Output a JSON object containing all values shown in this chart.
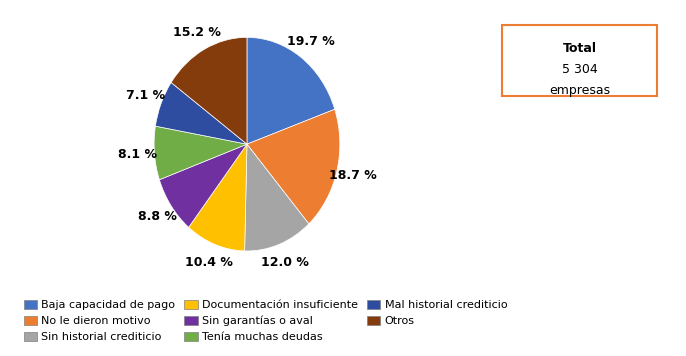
{
  "slices": [
    {
      "label": "Baja capacidad de pago",
      "pct": 19.7,
      "color": "#4472C4"
    },
    {
      "label": "No le dieron motivo",
      "pct": 18.7,
      "color": "#ED7D31"
    },
    {
      "label": "Sin historial crediticio",
      "pct": 12.0,
      "color": "#A5A5A5"
    },
    {
      "label": "Documentación insuficiente",
      "pct": 10.4,
      "color": "#FFC000"
    },
    {
      "label": "Sin garantías o aval",
      "pct": 8.8,
      "color": "#7030A0"
    },
    {
      "label": "Tenía muchas deudas",
      "pct": 8.1,
      "color": "#70AD47"
    },
    {
      "label": "Mal historial crediticio",
      "pct": 7.1,
      "color": "#2E4DA1"
    },
    {
      "label": "Otros",
      "pct": 15.2,
      "color": "#843C0C"
    }
  ],
  "total_label": "Total\n5 304\nempresas",
  "total_box_color": "#ED7D31",
  "background_color": "#FFFFFF",
  "legend_cols": 3,
  "pct_fontsize": 9,
  "legend_fontsize": 8
}
